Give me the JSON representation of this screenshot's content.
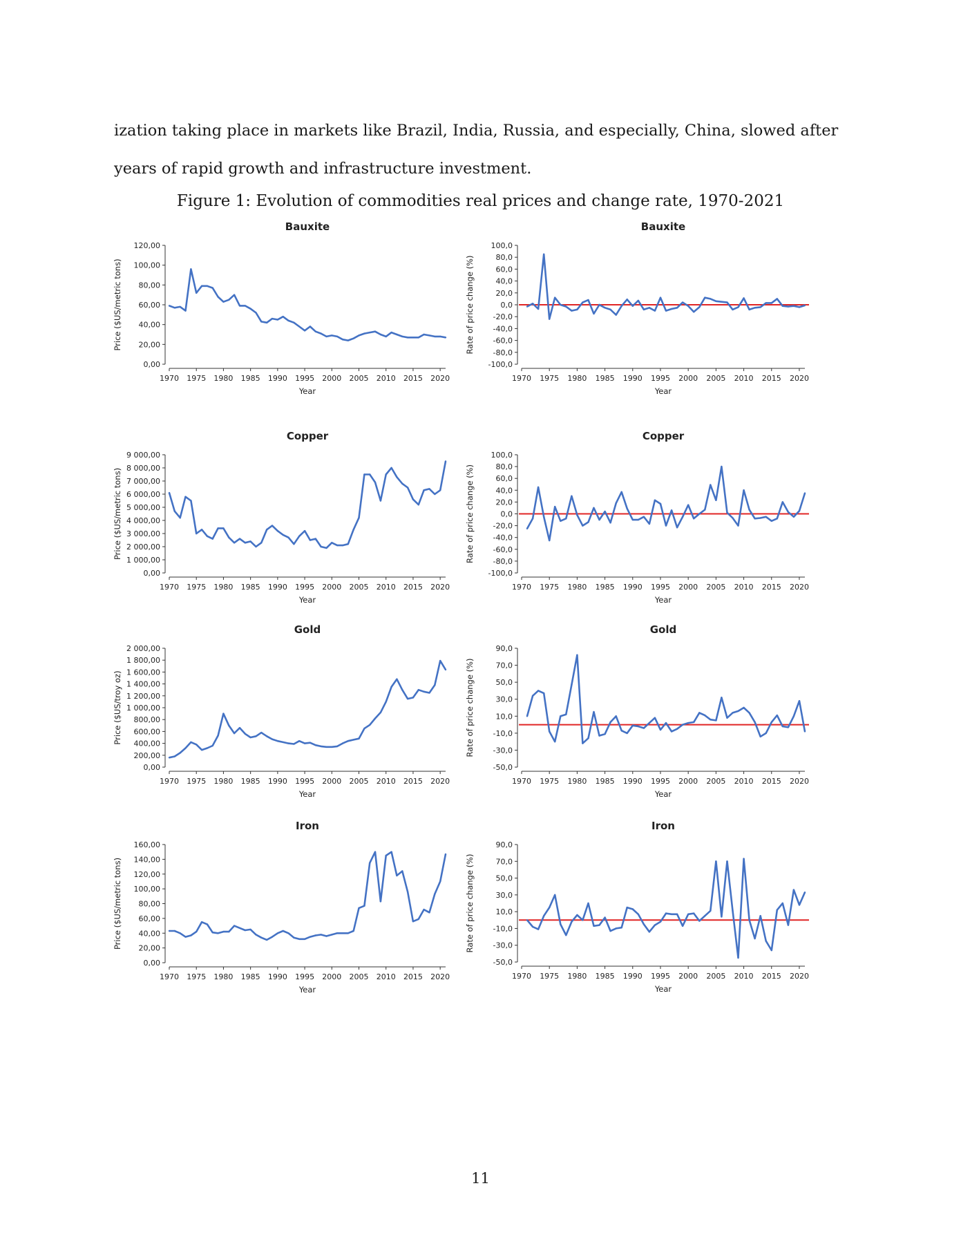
{
  "body_text": {
    "line1": "ization taking place in markets like Brazil, India, Russia, and especially, China, slowed after",
    "line2": "years of rapid growth and infrastructure investment."
  },
  "figure_caption": "Figure 1: Evolution of commodities real prices and change rate, 1970-2021",
  "page_number": "11",
  "colors": {
    "series": "#4472C4",
    "zero_line": "#E02424",
    "axis": "#333333"
  },
  "chart_data": [
    {
      "id": "bauxite-price",
      "type": "line",
      "title": "Bauxite",
      "xlabel": "Year",
      "ylabel": "Price ($US/metric tons)",
      "ylim": [
        0,
        120
      ],
      "xlim": [
        1970,
        2021
      ],
      "yticks": [
        "0,00",
        "20,00",
        "40,00",
        "60,00",
        "80,00",
        "100,00",
        "120,00"
      ],
      "xticks": [
        "1970",
        "1975",
        "1980",
        "1985",
        "1990",
        "1995",
        "2000",
        "2005",
        "2010",
        "2015",
        "2020"
      ],
      "x": [
        1970,
        1971,
        1972,
        1973,
        1974,
        1975,
        1976,
        1977,
        1978,
        1979,
        1980,
        1981,
        1982,
        1983,
        1984,
        1985,
        1986,
        1987,
        1988,
        1989,
        1990,
        1991,
        1992,
        1993,
        1994,
        1995,
        1996,
        1997,
        1998,
        1999,
        2000,
        2001,
        2002,
        2003,
        2004,
        2005,
        2006,
        2007,
        2008,
        2009,
        2010,
        2011,
        2012,
        2013,
        2014,
        2015,
        2016,
        2017,
        2018,
        2019,
        2020,
        2021
      ],
      "values": [
        59,
        57,
        58,
        54,
        96,
        72,
        79,
        79,
        77,
        68,
        63,
        65,
        70,
        59,
        59,
        56,
        52,
        43,
        42,
        46,
        45,
        48,
        44,
        42,
        38,
        34,
        38,
        33,
        31,
        28,
        29,
        28,
        25,
        24,
        26,
        29,
        31,
        32,
        33,
        30,
        28,
        32,
        30,
        28,
        27,
        27,
        27,
        30,
        29,
        28,
        28,
        27
      ]
    },
    {
      "id": "bauxite-change",
      "type": "line",
      "title": "Bauxite",
      "xlabel": "Year",
      "ylabel": "Rate of price change (%)",
      "ylim": [
        -100,
        100
      ],
      "xlim": [
        1970,
        2021
      ],
      "reference_line": 0,
      "yticks": [
        "-100,0",
        "-80,0",
        "-60,0",
        "-40,0",
        "-20,0",
        "0,0",
        "20,0",
        "40,0",
        "60,0",
        "80,0",
        "100,0"
      ],
      "xticks": [
        "1970",
        "1975",
        "1980",
        "1985",
        "1990",
        "1995",
        "2000",
        "2005",
        "2010",
        "2015",
        "2020"
      ],
      "x": [
        1971,
        1972,
        1973,
        1974,
        1975,
        1976,
        1977,
        1978,
        1979,
        1980,
        1981,
        1982,
        1983,
        1984,
        1985,
        1986,
        1987,
        1988,
        1989,
        1990,
        1991,
        1992,
        1993,
        1994,
        1995,
        1996,
        1997,
        1998,
        1999,
        2000,
        2001,
        2002,
        2003,
        2004,
        2005,
        2006,
        2007,
        2008,
        2009,
        2010,
        2011,
        2012,
        2013,
        2014,
        2015,
        2016,
        2017,
        2018,
        2019,
        2020,
        2021
      ],
      "values": [
        -3,
        2,
        -7,
        85,
        -24,
        12,
        0,
        -3,
        -10,
        -8,
        4,
        8,
        -15,
        0,
        -5,
        -8,
        -17,
        -2,
        9,
        -2,
        7,
        -8,
        -5,
        -10,
        12,
        -10,
        -7,
        -5,
        4,
        -2,
        -12,
        -4,
        12,
        10,
        6,
        5,
        4,
        -8,
        -4,
        11,
        -8,
        -5,
        -4,
        3,
        3,
        10,
        -2,
        -3,
        -2,
        -4,
        -1
      ]
    },
    {
      "id": "copper-price",
      "type": "line",
      "title": "Copper",
      "xlabel": "Year",
      "ylabel": "Price ($US/metric tons)",
      "ylim": [
        0,
        9000
      ],
      "xlim": [
        1970,
        2021
      ],
      "yticks": [
        "0,00",
        "1 000,00",
        "2 000,00",
        "3 000,00",
        "4 000,00",
        "5 000,00",
        "6 000,00",
        "7 000,00",
        "8 000,00",
        "9 000,00"
      ],
      "xticks": [
        "1970",
        "1975",
        "1980",
        "1985",
        "1990",
        "1995",
        "2000",
        "2005",
        "2010",
        "2015",
        "2020"
      ],
      "x": [
        1970,
        1971,
        1972,
        1973,
        1974,
        1975,
        1976,
        1977,
        1978,
        1979,
        1980,
        1981,
        1982,
        1983,
        1984,
        1985,
        1986,
        1987,
        1988,
        1989,
        1990,
        1991,
        1992,
        1993,
        1994,
        1995,
        1996,
        1997,
        1998,
        1999,
        2000,
        2001,
        2002,
        2003,
        2004,
        2005,
        2006,
        2007,
        2008,
        2009,
        2010,
        2011,
        2012,
        2013,
        2014,
        2015,
        2016,
        2017,
        2018,
        2019,
        2020,
        2021
      ],
      "values": [
        6100,
        4700,
        4200,
        5800,
        5500,
        3000,
        3300,
        2800,
        2600,
        3400,
        3400,
        2700,
        2300,
        2600,
        2300,
        2400,
        2000,
        2300,
        3300,
        3600,
        3200,
        2900,
        2700,
        2200,
        2800,
        3200,
        2500,
        2600,
        2000,
        1900,
        2300,
        2100,
        2100,
        2200,
        3300,
        4200,
        7500,
        7500,
        6900,
        5500,
        7500,
        8000,
        7300,
        6800,
        6500,
        5600,
        5200,
        6300,
        6400,
        6000,
        6300,
        8500
      ]
    },
    {
      "id": "copper-change",
      "type": "line",
      "title": "Copper",
      "xlabel": "Year",
      "ylabel": "Rate of price change (%)",
      "ylim": [
        -100,
        100
      ],
      "xlim": [
        1970,
        2021
      ],
      "reference_line": 0,
      "yticks": [
        "-100,0",
        "-80,0",
        "-60,0",
        "-40,0",
        "-20,0",
        "0,0",
        "20,0",
        "40,0",
        "60,0",
        "80,0",
        "100,0"
      ],
      "xticks": [
        "1970",
        "1975",
        "1980",
        "1985",
        "1990",
        "1995",
        "2000",
        "2005",
        "2010",
        "2015",
        "2020"
      ],
      "x": [
        1971,
        1972,
        1973,
        1974,
        1975,
        1976,
        1977,
        1978,
        1979,
        1980,
        1981,
        1982,
        1983,
        1984,
        1985,
        1986,
        1987,
        1988,
        1989,
        1990,
        1991,
        1992,
        1993,
        1994,
        1995,
        1996,
        1997,
        1998,
        1999,
        2000,
        2001,
        2002,
        2003,
        2004,
        2005,
        2006,
        2007,
        2008,
        2009,
        2010,
        2011,
        2012,
        2013,
        2014,
        2015,
        2016,
        2017,
        2018,
        2019,
        2020,
        2021
      ],
      "values": [
        -25,
        -8,
        45,
        -5,
        -45,
        12,
        -12,
        -8,
        30,
        -2,
        -20,
        -14,
        10,
        -10,
        4,
        -15,
        18,
        37,
        9,
        -10,
        -10,
        -5,
        -17,
        23,
        17,
        -20,
        6,
        -23,
        -5,
        15,
        -8,
        0,
        7,
        49,
        23,
        80,
        2,
        -7,
        -20,
        40,
        7,
        -8,
        -7,
        -5,
        -12,
        -8,
        20,
        3,
        -5,
        5,
        35
      ]
    },
    {
      "id": "gold-price",
      "type": "line",
      "title": "Gold",
      "xlabel": "Year",
      "ylabel": "Price ($US/troy oz)",
      "ylim": [
        0,
        2000
      ],
      "xlim": [
        1970,
        2021
      ],
      "yticks": [
        "0,00",
        "200,00",
        "400,00",
        "600,00",
        "800,00",
        "1 000,00",
        "1 200,00",
        "1 400,00",
        "1 600,00",
        "1 800,00",
        "2 000,00"
      ],
      "xticks": [
        "1970",
        "1975",
        "1980",
        "1985",
        "1990",
        "1995",
        "2000",
        "2005",
        "2010",
        "2015",
        "2020"
      ],
      "x": [
        1970,
        1971,
        1972,
        1973,
        1974,
        1975,
        1976,
        1977,
        1978,
        1979,
        1980,
        1981,
        1982,
        1983,
        1984,
        1985,
        1986,
        1987,
        1988,
        1989,
        1990,
        1991,
        1992,
        1993,
        1994,
        1995,
        1996,
        1997,
        1998,
        1999,
        2000,
        2001,
        2002,
        2003,
        2004,
        2005,
        2006,
        2007,
        2008,
        2009,
        2010,
        2011,
        2012,
        2013,
        2014,
        2015,
        2016,
        2017,
        2018,
        2019,
        2020,
        2021
      ],
      "values": [
        160,
        180,
        240,
        320,
        420,
        380,
        290,
        320,
        360,
        530,
        900,
        700,
        570,
        660,
        560,
        500,
        520,
        580,
        520,
        470,
        440,
        420,
        400,
        390,
        440,
        400,
        410,
        370,
        350,
        340,
        340,
        350,
        400,
        440,
        460,
        480,
        650,
        710,
        820,
        920,
        1100,
        1350,
        1480,
        1300,
        1150,
        1170,
        1300,
        1270,
        1250,
        1380,
        1790,
        1640
      ]
    },
    {
      "id": "gold-change",
      "type": "line",
      "title": "Gold",
      "xlabel": "Year",
      "ylabel": "Rate of price change (%)",
      "ylim": [
        -50,
        90
      ],
      "xlim": [
        1970,
        2021
      ],
      "reference_line": 0,
      "yticks": [
        "-50,0",
        "-30,0",
        "-10,0",
        "10,0",
        "30,0",
        "50,0",
        "70,0",
        "90,0"
      ],
      "xticks": [
        "1970",
        "1975",
        "1980",
        "1985",
        "1990",
        "1995",
        "2000",
        "2005",
        "2010",
        "2015",
        "2020"
      ],
      "x": [
        1971,
        1972,
        1973,
        1974,
        1975,
        1976,
        1977,
        1978,
        1979,
        1980,
        1981,
        1982,
        1983,
        1984,
        1985,
        1986,
        1987,
        1988,
        1989,
        1990,
        1991,
        1992,
        1993,
        1994,
        1995,
        1996,
        1997,
        1998,
        1999,
        2000,
        2001,
        2002,
        2003,
        2004,
        2005,
        2006,
        2007,
        2008,
        2009,
        2010,
        2011,
        2012,
        2013,
        2014,
        2015,
        2016,
        2017,
        2018,
        2019,
        2020,
        2021
      ],
      "values": [
        10,
        34,
        40,
        37,
        -8,
        -20,
        10,
        12,
        47,
        82,
        -22,
        -16,
        15,
        -13,
        -11,
        3,
        10,
        -7,
        -10,
        -1,
        -2,
        -4,
        2,
        8,
        -6,
        2,
        -8,
        -5,
        0,
        2,
        3,
        14,
        11,
        6,
        5,
        32,
        8,
        14,
        16,
        20,
        14,
        3,
        -14,
        -10,
        3,
        11,
        -2,
        -3,
        10,
        28,
        -8
      ]
    },
    {
      "id": "iron-price",
      "type": "line",
      "title": "Iron",
      "xlabel": "Year",
      "ylabel": "Price ($US/metric tons)",
      "ylim": [
        0,
        160
      ],
      "xlim": [
        1970,
        2021
      ],
      "yticks": [
        "0,00",
        "20,00",
        "40,00",
        "60,00",
        "80,00",
        "100,00",
        "120,00",
        "140,00",
        "160,00"
      ],
      "xticks": [
        "1970",
        "1975",
        "1980",
        "1985",
        "1990",
        "1995",
        "2000",
        "2005",
        "2010",
        "2015",
        "2020"
      ],
      "x": [
        1970,
        1971,
        1972,
        1973,
        1974,
        1975,
        1976,
        1977,
        1978,
        1979,
        1980,
        1981,
        1982,
        1983,
        1984,
        1985,
        1986,
        1987,
        1988,
        1989,
        1990,
        1991,
        1992,
        1993,
        1994,
        1995,
        1996,
        1997,
        1998,
        1999,
        2000,
        2001,
        2002,
        2003,
        2004,
        2005,
        2006,
        2007,
        2008,
        2009,
        2010,
        2011,
        2012,
        2013,
        2014,
        2015,
        2016,
        2017,
        2018,
        2019,
        2020,
        2021
      ],
      "values": [
        43,
        43,
        40,
        35,
        37,
        42,
        55,
        52,
        41,
        40,
        42,
        42,
        50,
        47,
        44,
        45,
        38,
        34,
        31,
        35,
        40,
        43,
        40,
        34,
        32,
        32,
        35,
        37,
        38,
        36,
        38,
        40,
        40,
        40,
        43,
        74,
        77,
        135,
        150,
        83,
        145,
        150,
        118,
        124,
        96,
        56,
        59,
        72,
        68,
        93,
        110,
        147
      ]
    },
    {
      "id": "iron-change",
      "type": "line",
      "title": "Iron",
      "xlabel": "Year",
      "ylabel": "Rate of price change (%)",
      "ylim": [
        -50,
        90
      ],
      "xlim": [
        1970,
        2021
      ],
      "reference_line": 0,
      "yticks": [
        "-50,0",
        "-30,0",
        "-10,0",
        "10,0",
        "30,0",
        "50,0",
        "70,0",
        "90,0"
      ],
      "xticks": [
        "1970",
        "1975",
        "1980",
        "1985",
        "1990",
        "1995",
        "2000",
        "2005",
        "2010",
        "2015",
        "2020"
      ],
      "x": [
        1971,
        1972,
        1973,
        1974,
        1975,
        1976,
        1977,
        1978,
        1979,
        1980,
        1981,
        1982,
        1983,
        1984,
        1985,
        1986,
        1987,
        1988,
        1989,
        1990,
        1991,
        1992,
        1993,
        1994,
        1995,
        1996,
        1997,
        1998,
        1999,
        2000,
        2001,
        2002,
        2003,
        2004,
        2005,
        2006,
        2007,
        2008,
        2009,
        2010,
        2011,
        2012,
        2013,
        2014,
        2015,
        2016,
        2017,
        2018,
        2019,
        2020,
        2021
      ],
      "values": [
        0,
        -8,
        -11,
        5,
        15,
        30,
        -5,
        -18,
        -2,
        6,
        0,
        20,
        -7,
        -6,
        3,
        -13,
        -10,
        -9,
        15,
        13,
        7,
        -5,
        -14,
        -6,
        -2,
        8,
        7,
        7,
        -7,
        7,
        8,
        -1,
        5,
        11,
        70,
        4,
        70,
        11,
        -45,
        73,
        0,
        -22,
        5,
        -25,
        -36,
        12,
        20,
        -6,
        36,
        18,
        33
      ]
    }
  ]
}
